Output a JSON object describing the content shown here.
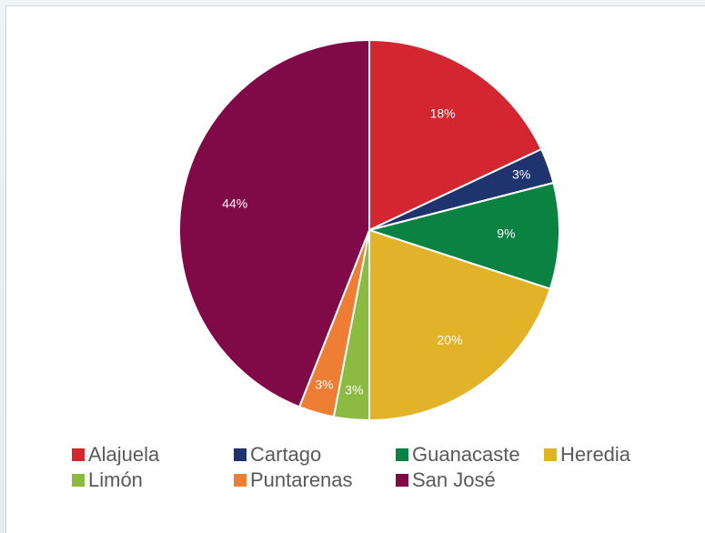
{
  "chart_data": {
    "type": "pie",
    "title": "",
    "slices": [
      {
        "name": "Alajuela",
        "value": 18,
        "label": "18%",
        "color": "#d42631"
      },
      {
        "name": "Cartago",
        "value": 3,
        "label": "3%",
        "color": "#1f346f"
      },
      {
        "name": "Guanacaste",
        "value": 9,
        "label": "9%",
        "color": "#0a8342"
      },
      {
        "name": "Heredia",
        "value": 20,
        "label": "20%",
        "color": "#e2b229"
      },
      {
        "name": "Limón",
        "value": 3,
        "label": "3%",
        "color": "#8bbb40"
      },
      {
        "name": "Puntarenas",
        "value": 3,
        "label": "3%",
        "color": "#ee7e33"
      },
      {
        "name": "San José",
        "value": 44,
        "label": "44%",
        "color": "#800a48"
      }
    ],
    "legend_position": "bottom"
  }
}
